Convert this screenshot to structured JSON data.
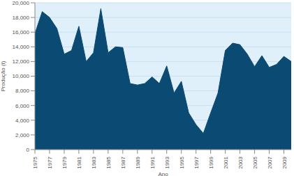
{
  "chart_data": {
    "type": "area",
    "x_label": "Ano",
    "y_label": "Produção (t)",
    "x": [
      1975,
      1976,
      1977,
      1978,
      1979,
      1980,
      1981,
      1982,
      1983,
      1984,
      1985,
      1986,
      1987,
      1988,
      1989,
      1990,
      1991,
      1992,
      1993,
      1994,
      1995,
      1996,
      1997,
      1998,
      1999,
      2000,
      2001,
      2002,
      2003,
      2004,
      2005,
      2006,
      2007,
      2008,
      2009,
      2010
    ],
    "values": [
      15800,
      18800,
      18000,
      16500,
      13000,
      13500,
      16800,
      12000,
      13200,
      19200,
      13200,
      14000,
      13900,
      9000,
      8800,
      9000,
      9900,
      9000,
      11400,
      7700,
      9300,
      5000,
      3400,
      2200,
      5000,
      7700,
      13500,
      14500,
      14300,
      13000,
      11300,
      12800,
      11200,
      11600,
      12700,
      12000
    ],
    "color": "#0b4a73",
    "xlim": [
      1975,
      2010
    ],
    "xticks": [
      1975,
      1977,
      1979,
      1981,
      1983,
      1985,
      1987,
      1989,
      1991,
      1993,
      1995,
      1997,
      1999,
      2001,
      2003,
      2005,
      2007,
      2009
    ],
    "ylim": [
      0,
      20000
    ],
    "yticks": [
      0,
      {
        "value": 2000,
        "label": "2,000"
      },
      {
        "value": 4000,
        "label": "4,000"
      },
      {
        "value": 6000,
        "label": "6,000"
      },
      {
        "value": 8000,
        "label": "8,000"
      },
      {
        "value": 10000,
        "label": "10,000"
      },
      {
        "value": 12000,
        "label": "12,000"
      },
      {
        "value": 14000,
        "label": "14,000"
      },
      {
        "value": 16000,
        "label": "16,000"
      },
      {
        "value": 18000,
        "label": "18,000"
      },
      {
        "value": 20000,
        "label": "20,000"
      }
    ],
    "grid": true
  }
}
